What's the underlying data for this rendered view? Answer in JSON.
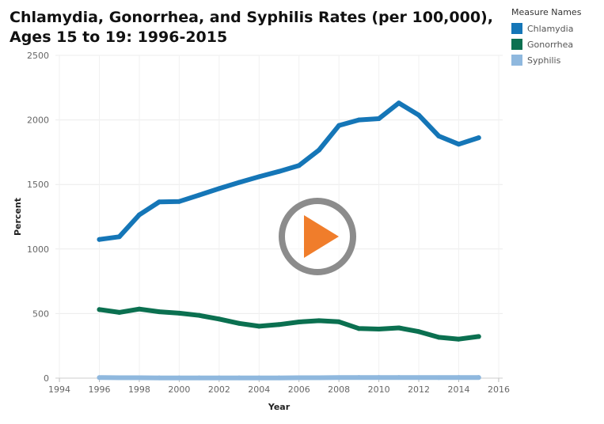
{
  "title": {
    "line1": "Chlamydia, Gonorrhea, and Syphilis Rates (per 100,000),",
    "line2": "Ages 15 to 19:  1996-2015"
  },
  "legend": {
    "title": "Measure Names",
    "items": [
      {
        "label": "Chlamydia",
        "color": "#1576b7"
      },
      {
        "label": "Gonorrhea",
        "color": "#0b7050"
      },
      {
        "label": "Syphilis",
        "color": "#8fb8de"
      }
    ]
  },
  "play_button": {
    "icon": "play-icon",
    "ring_color": "#8c8c8c",
    "triangle_color": "#f07d2b"
  },
  "chart_data": {
    "type": "line",
    "xlabel": "Year",
    "ylabel": "Percent",
    "xlim": [
      1993.8,
      2016.2
    ],
    "ylim": [
      0,
      2500
    ],
    "xticks": [
      {
        "value": 1994,
        "label": "1994"
      },
      {
        "value": 1996,
        "label": "1996"
      },
      {
        "value": 1998,
        "label": "1998"
      },
      {
        "value": 2000,
        "label": "2000"
      },
      {
        "value": 2002,
        "label": "2002"
      },
      {
        "value": 2004,
        "label": "2004"
      },
      {
        "value": 2006,
        "label": "2006"
      },
      {
        "value": 2008,
        "label": "2008"
      },
      {
        "value": 2010,
        "label": "2010"
      },
      {
        "value": 2012,
        "label": "2012"
      },
      {
        "value": 2014,
        "label": "2014"
      },
      {
        "value": 2016,
        "label": "2016"
      }
    ],
    "yticks": [
      {
        "value": 0,
        "label": "0"
      },
      {
        "value": 500,
        "label": "500"
      },
      {
        "value": 1000,
        "label": "1000"
      },
      {
        "value": 1500,
        "label": "1500"
      },
      {
        "value": 2000,
        "label": "2000"
      },
      {
        "value": 2500,
        "label": "2500"
      }
    ],
    "grid": true,
    "x": [
      1996,
      1997,
      1998,
      1999,
      2000,
      2001,
      2002,
      2003,
      2004,
      2005,
      2006,
      2007,
      2008,
      2009,
      2010,
      2011,
      2012,
      2013,
      2014,
      2015
    ],
    "series": [
      {
        "name": "Chlamydia",
        "color": "#1576b7",
        "values": [
          1074,
          1095,
          1265,
          1365,
          1368,
          1418,
          1468,
          1516,
          1560,
          1601,
          1647,
          1766,
          1957,
          2000,
          2010,
          2131,
          2037,
          1875,
          1812,
          1862
        ]
      },
      {
        "name": "Gonorrhea",
        "color": "#0b7050",
        "values": [
          531,
          509,
          535,
          514,
          503,
          486,
          458,
          424,
          402,
          415,
          435,
          445,
          436,
          384,
          380,
          389,
          360,
          316,
          302,
          322
        ]
      },
      {
        "name": "Syphilis",
        "color": "#8fb8de",
        "values": [
          4,
          3,
          3,
          2,
          2,
          2,
          2,
          2,
          2,
          2,
          3,
          3,
          4,
          5,
          5,
          5,
          4,
          4,
          5,
          5
        ]
      }
    ]
  }
}
